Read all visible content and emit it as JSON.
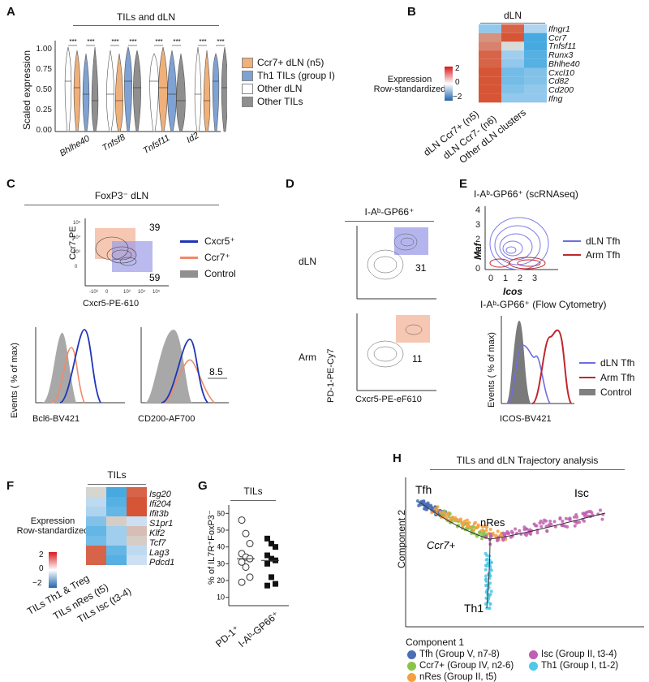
{
  "panels": {
    "A": {
      "label": "A",
      "title": "TILs and dLN",
      "ylabel": "Scaled expression",
      "yticks": [
        "0.00",
        "0.25",
        "0.50",
        "0.75",
        "1.00"
      ],
      "genes": [
        "Bhlhe40",
        "Tnfsf8",
        "Tnfsf11",
        "Id2"
      ],
      "sig": "***",
      "legend": [
        {
          "label": "Ccr7+ dLN (n5)",
          "color": "#f0b07a"
        },
        {
          "label": "Th1 TILs (group I)",
          "color": "#7ea2d3"
        },
        {
          "label": "Other dLN",
          "color": "#ffffff"
        },
        {
          "label": "Other TILs",
          "color": "#8f8f8f"
        }
      ]
    },
    "B": {
      "label": "B",
      "title": "dLN",
      "colorbar_title": [
        "Expression",
        "Row-standardized"
      ],
      "colorbar_ticks": [
        "2",
        "0",
        "−2"
      ],
      "rows": [
        "Ifngr1",
        "Ccr7",
        "Tnfsf11",
        "Runx3",
        "Bhlhe40",
        "Cxcl10",
        "Cd82",
        "Cd200",
        "Ifng"
      ],
      "cols": [
        "dLN Ccr7+ (n5)",
        "dLN Ccr7- (n6)",
        "Other dLN clusters"
      ]
    },
    "C": {
      "label": "C",
      "title": "FoxP3⁻ dLN",
      "pct_top": "39",
      "pct_bottom": "59",
      "xlabel": "Cxcr5-PE-610",
      "ylabel": "Ccr7-PE",
      "legend": [
        {
          "label": "Cxcr5⁺",
          "color": "#1f35b5"
        },
        {
          "label": "Ccr7⁺",
          "color": "#f08a6a"
        },
        {
          "label": "Control",
          "color": "#909090"
        }
      ],
      "hist_ylabel": "Events ( % of max)",
      "hist1_xlabel": "Bcl6-BV421",
      "hist2_xlabel": "CD200-AF700",
      "hist2_value": "8.5"
    },
    "D": {
      "label": "D",
      "title": "I-Aᵇ-GP66⁺",
      "row1": "dLN",
      "row2": "Arm",
      "pct1": "31",
      "pct2": "11",
      "ylabel": "PD-1-PE-Cy7",
      "xlabel": "Cxcr5-PE-eF610"
    },
    "E": {
      "label": "E",
      "title1": "I-Aᵇ-GP66⁺ (scRNAseq)",
      "xlabel1": "Icos",
      "ylabel1": "Maf",
      "legend1": [
        {
          "label": "dLN Tfh",
          "color": "#6e6ee0"
        },
        {
          "label": "Arm Tfh",
          "color": "#c0272d"
        }
      ],
      "title2": "I-Aᵇ-GP66⁺ (Flow Cytometry)",
      "xlabel2": "ICOS-BV421",
      "ylabel2": "Events ( % of max)",
      "legend2": [
        {
          "label": "dLN Tfh",
          "color": "#6e6ee0"
        },
        {
          "label": "Arm Tfh",
          "color": "#c0272d"
        },
        {
          "label": "Control",
          "color": "#808080"
        }
      ]
    },
    "F": {
      "label": "F",
      "title": "TILs",
      "colorbar_title": [
        "Expression",
        "Row-standardized"
      ],
      "colorbar_ticks": [
        "2",
        "0",
        "−2"
      ],
      "rows": [
        "Isg20",
        "Ifi204",
        "Ifit3b",
        "S1pr1",
        "Klf2",
        "Tcf7",
        "Lag3",
        "Pdcd1"
      ],
      "cols": [
        "TILs Th1 & Treg",
        "TILs nRes (t5)",
        "TILs Isc (t3-4)"
      ]
    },
    "G": {
      "label": "G",
      "title": "TILs",
      "ylabel": "% of IL7R⁺FoxP3⁻",
      "yticks": [
        "10",
        "20",
        "30",
        "40",
        "50",
        "60"
      ],
      "cats": [
        "PD-1⁺",
        "I-Aᵇ-GP66⁺"
      ]
    },
    "H": {
      "label": "H",
      "title": "TILs and dLN Trajectory analysis",
      "xlabel": "Component 1",
      "ylabel": "Component 2",
      "branch_labels": [
        "Tfh",
        "Isc",
        "nRes",
        "Ccr7+",
        "Th1"
      ],
      "legend": [
        {
          "label": "Tfh (Group V, n7-8)",
          "color": "#4a6fb5"
        },
        {
          "label": "Ccr7+ (Group IV, n2-6)",
          "color": "#8bc34a"
        },
        {
          "label": "nRes (Group II, t5)",
          "color": "#f5a040"
        },
        {
          "label": "Isc (Group II, t3-4)",
          "color": "#c060b0"
        },
        {
          "label": "Th1 (Group I, t1-2)",
          "color": "#50c8e8"
        }
      ]
    }
  }
}
